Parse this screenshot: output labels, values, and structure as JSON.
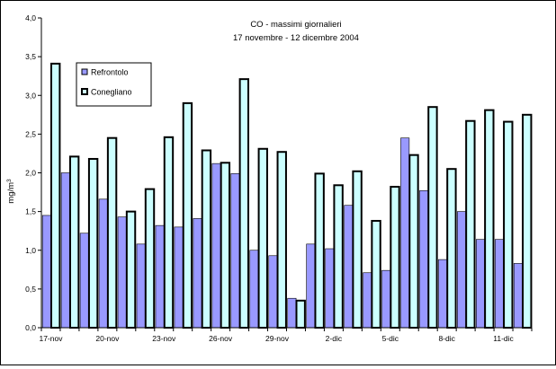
{
  "chart_data": {
    "type": "bar",
    "title": "CO - massimi giornalieri",
    "subtitle": "17 novembre - 12 dicembre 2004",
    "ylabel_base": "mg/m",
    "ylabel_sup": "3",
    "ylim": [
      0,
      4
    ],
    "y_ticks": [
      "0,0",
      "0,5",
      "1,0",
      "1,5",
      "2,0",
      "2,5",
      "3,0",
      "3,5",
      "4,0"
    ],
    "categories": [
      "17-nov",
      "18-nov",
      "19-nov",
      "20-nov",
      "21-nov",
      "22-nov",
      "23-nov",
      "24-nov",
      "25-nov",
      "26-nov",
      "27-nov",
      "28-nov",
      "29-nov",
      "30-nov",
      "1-dic",
      "2-dic",
      "3-dic",
      "4-dic",
      "5-dic",
      "6-dic",
      "7-dic",
      "8-dic",
      "9-dic",
      "10-dic",
      "11-dic",
      "12-dic"
    ],
    "visible_tick_labels": [
      "17-nov",
      "",
      "",
      "20-nov",
      "",
      "",
      "23-nov",
      "",
      "",
      "26-nov",
      "",
      "",
      "29-nov",
      "",
      "",
      "2-dic",
      "",
      "",
      "5-dic",
      "",
      "",
      "8-dic",
      "",
      "",
      "11-dic",
      ""
    ],
    "series": [
      {
        "name": "Refrontolo",
        "color": "#9999ff",
        "values": [
          1.45,
          2.0,
          1.22,
          1.66,
          1.43,
          1.08,
          1.32,
          1.3,
          1.41,
          2.12,
          1.99,
          1.0,
          0.93,
          0.38,
          1.08,
          1.02,
          1.58,
          0.71,
          0.74,
          2.45,
          1.77,
          0.88,
          1.5,
          1.14,
          1.14,
          0.83
        ]
      },
      {
        "name": "Conegliano",
        "color": "#ccffff",
        "values": [
          3.41,
          2.21,
          2.18,
          2.45,
          1.5,
          1.79,
          2.46,
          2.9,
          2.29,
          2.13,
          3.21,
          2.31,
          2.27,
          0.35,
          1.99,
          1.84,
          2.02,
          1.38,
          1.82,
          2.23,
          2.85,
          2.05,
          2.67,
          2.81,
          2.66,
          2.75
        ]
      }
    ],
    "legend_position": "top-left",
    "grid": false
  }
}
